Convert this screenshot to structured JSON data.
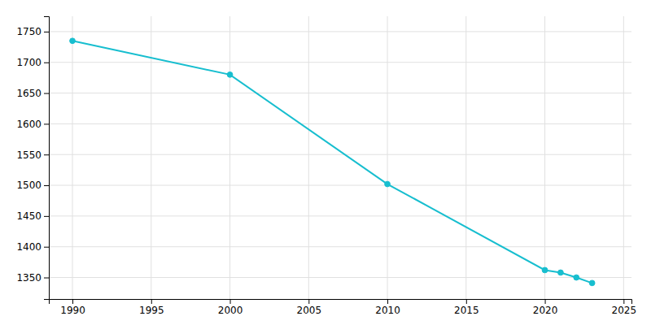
{
  "chart_data": {
    "type": "line",
    "x": [
      1990,
      2000,
      2010,
      2020,
      2021,
      2022,
      2023
    ],
    "values": [
      1735,
      1680,
      1502,
      1362,
      1358,
      1350,
      1341
    ],
    "color": "#17BECF",
    "marker": "circle",
    "xlim": [
      1988.5,
      2025.5
    ],
    "ylim": [
      1315,
      1775
    ],
    "xticks": [
      1990,
      1995,
      2000,
      2005,
      2010,
      2015,
      2020,
      2025
    ],
    "yticks": [
      1350,
      1400,
      1450,
      1500,
      1550,
      1600,
      1650,
      1700,
      1750
    ],
    "grid": true
  }
}
